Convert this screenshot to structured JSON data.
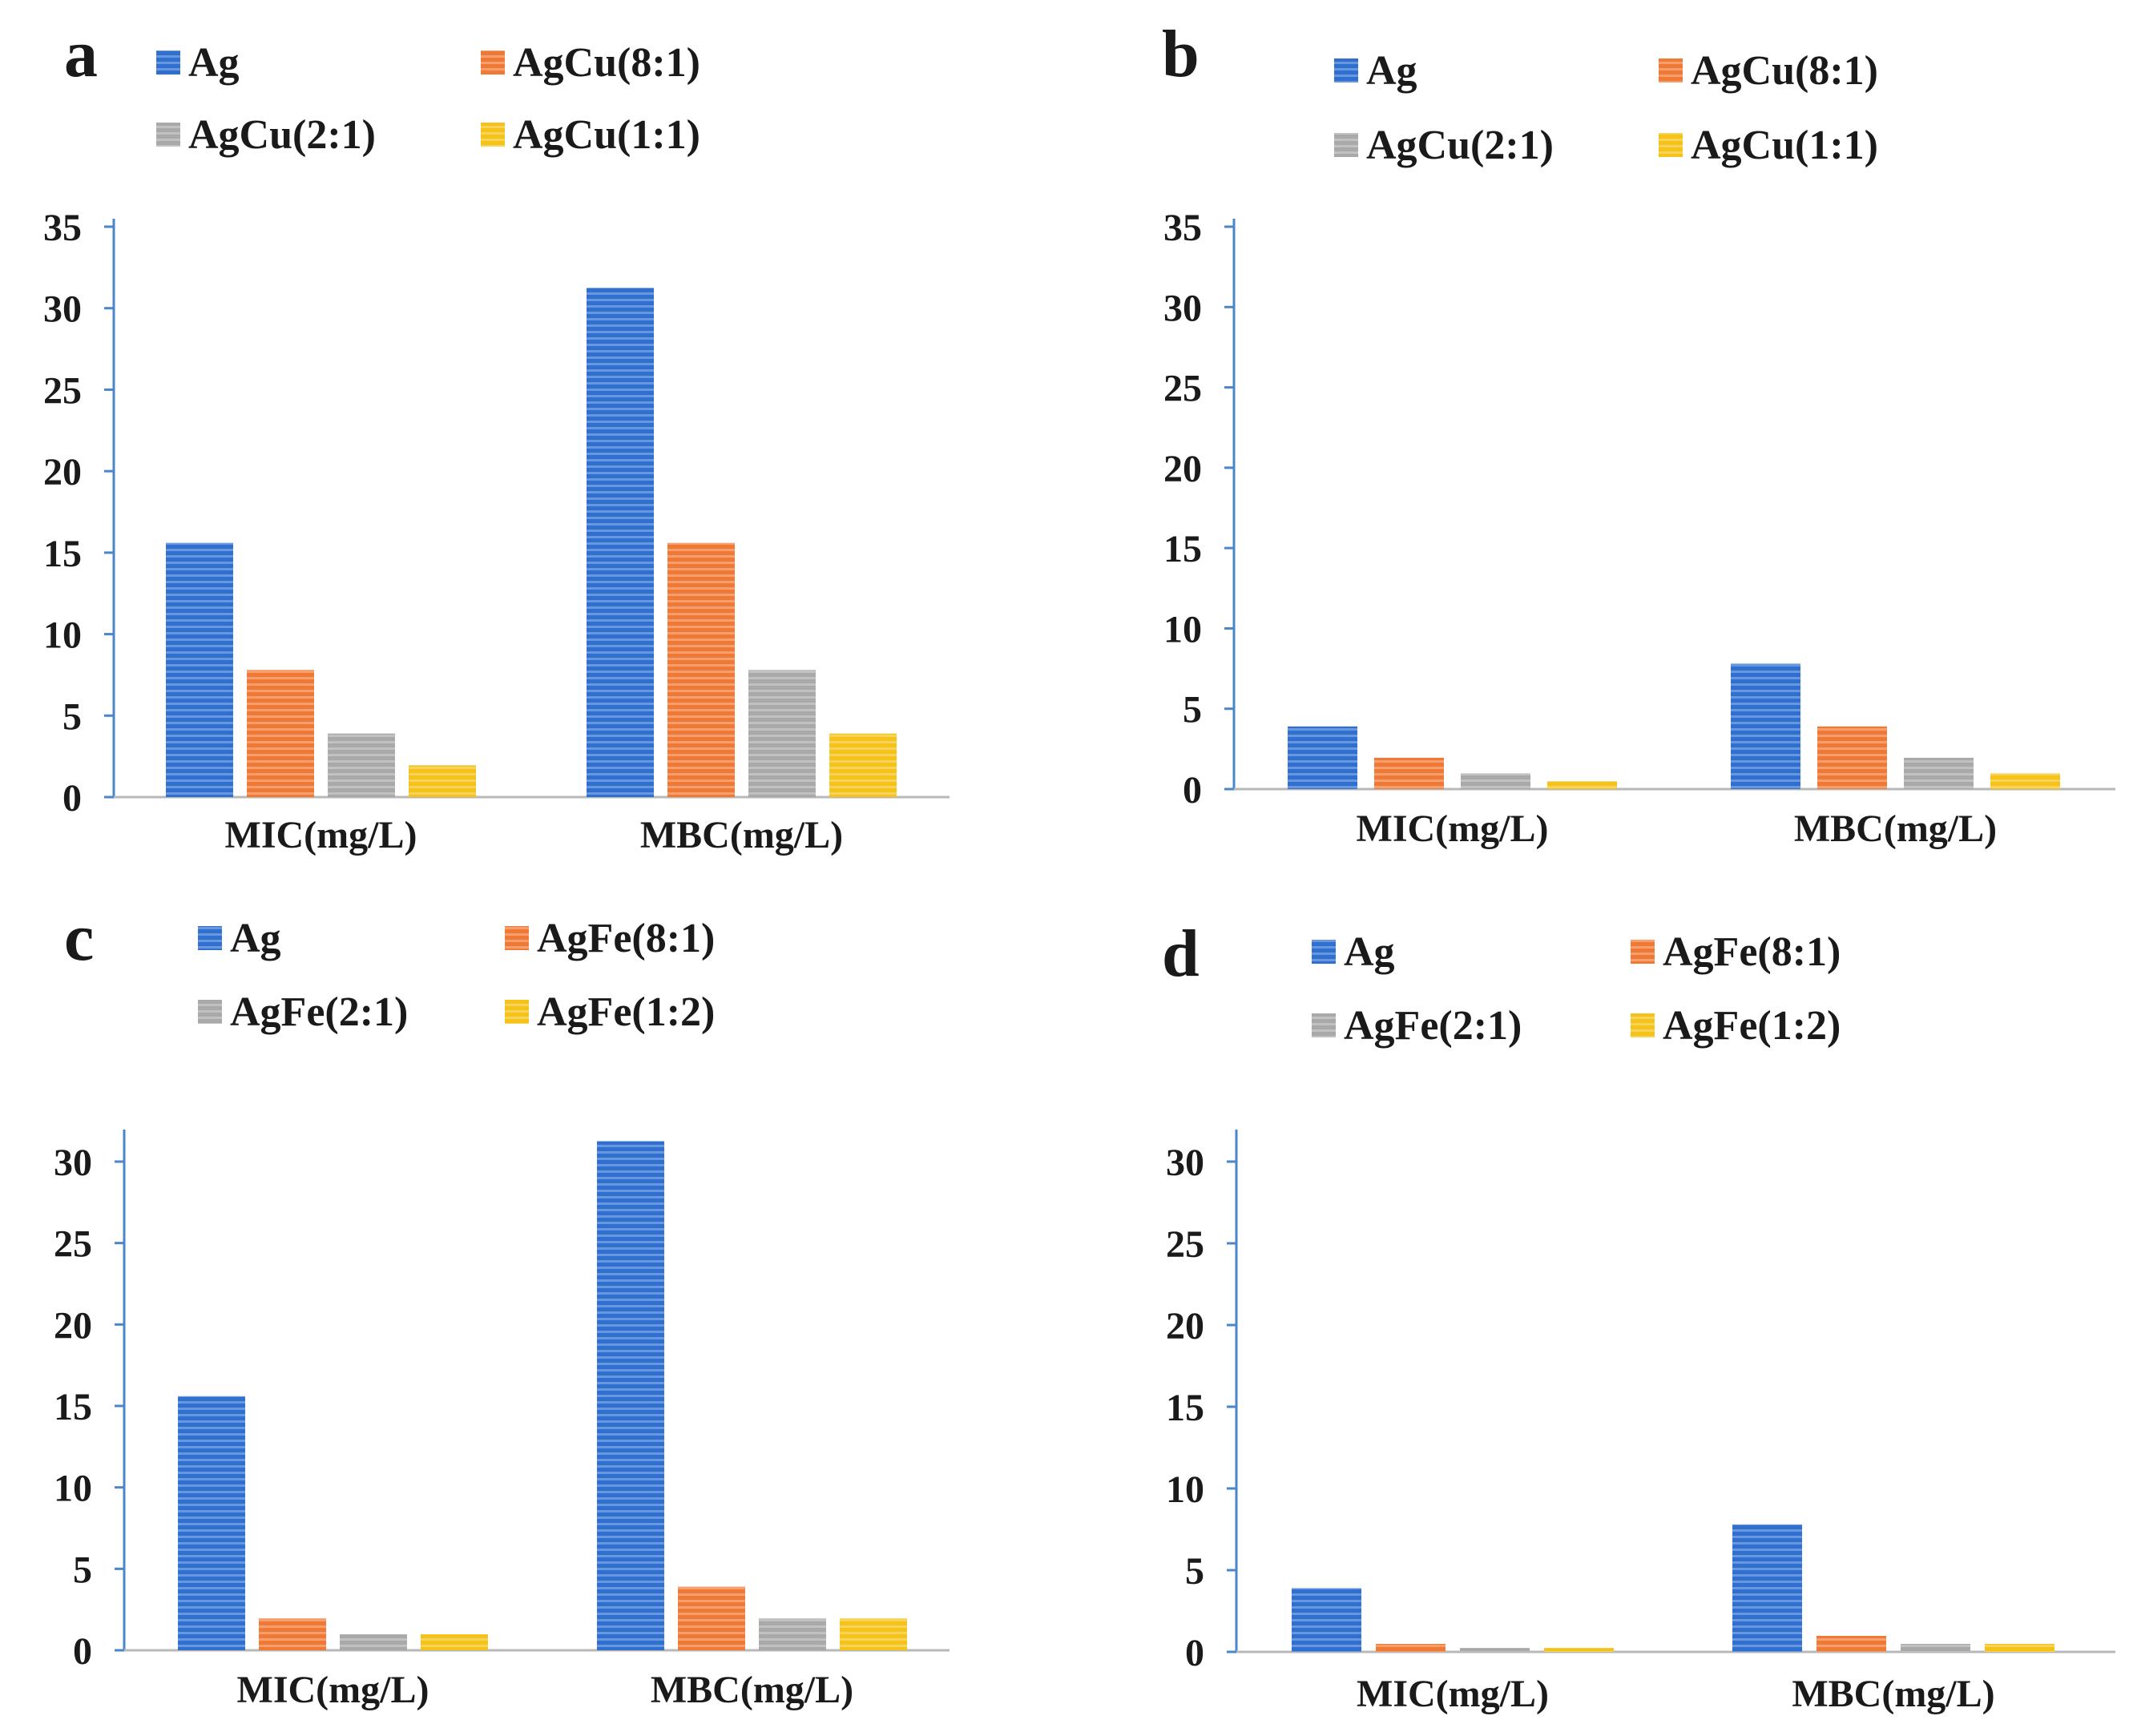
{
  "figure": {
    "colors": {
      "Ag": "#2e6fd0",
      "series2": "#f07a35",
      "series3": "#a9a9a9",
      "series4": "#f5c21a",
      "axis": "#4a86c8",
      "text": "#1a1a1a"
    }
  },
  "chart_data": [
    {
      "type": "bar",
      "panel_label": "a",
      "categories": [
        "MIC(mg/L)",
        "MBC(mg/L)"
      ],
      "series": [
        {
          "name": "Ag",
          "values": [
            15.6,
            31.25
          ]
        },
        {
          "name": "AgCu(8:1)",
          "values": [
            7.8,
            15.6
          ]
        },
        {
          "name": "AgCu(2:1)",
          "values": [
            3.9,
            7.8
          ]
        },
        {
          "name": "AgCu(1:1)",
          "values": [
            1.95,
            3.9
          ]
        }
      ],
      "yticks": [
        "0",
        "5",
        "10",
        "15",
        "20",
        "25",
        "30",
        "35"
      ],
      "ylim": [
        0,
        35
      ],
      "grid": false,
      "legend": "top"
    },
    {
      "type": "bar",
      "panel_label": "b",
      "categories": [
        "MIC(mg/L)",
        "MBC(mg/L)"
      ],
      "series": [
        {
          "name": "Ag",
          "values": [
            3.9,
            7.8
          ]
        },
        {
          "name": "AgCu(8:1)",
          "values": [
            1.95,
            3.9
          ]
        },
        {
          "name": "AgCu(2:1)",
          "values": [
            0.98,
            1.95
          ]
        },
        {
          "name": "AgCu(1:1)",
          "values": [
            0.49,
            0.98
          ]
        }
      ],
      "yticks": [
        "0",
        "5",
        "10",
        "15",
        "20",
        "25",
        "30",
        "35"
      ],
      "ylim": [
        0,
        35
      ],
      "grid": false,
      "legend": "top"
    },
    {
      "type": "bar",
      "panel_label": "c",
      "categories": [
        "MIC(mg/L)",
        "MBC(mg/L)"
      ],
      "series": [
        {
          "name": "Ag",
          "values": [
            15.6,
            31.25
          ]
        },
        {
          "name": "AgFe(8:1)",
          "values": [
            1.95,
            3.9
          ]
        },
        {
          "name": "AgFe(2:1)",
          "values": [
            0.98,
            1.95
          ]
        },
        {
          "name": "AgFe(1:2)",
          "values": [
            0.98,
            1.95
          ]
        }
      ],
      "yticks": [
        "0",
        "5",
        "10",
        "15",
        "20",
        "25",
        "30"
      ],
      "ylim": [
        0,
        32
      ],
      "grid": false,
      "legend": "top"
    },
    {
      "type": "bar",
      "panel_label": "d",
      "categories": [
        "MIC(mg/L)",
        "MBC(mg/L)"
      ],
      "series": [
        {
          "name": "Ag",
          "values": [
            3.9,
            7.8
          ]
        },
        {
          "name": "AgFe(8:1)",
          "values": [
            0.49,
            0.98
          ]
        },
        {
          "name": "AgFe(2:1)",
          "values": [
            0.24,
            0.49
          ]
        },
        {
          "name": "AgFe(1:2)",
          "values": [
            0.24,
            0.49
          ]
        }
      ],
      "yticks": [
        "0",
        "5",
        "10",
        "15",
        "20",
        "25",
        "30"
      ],
      "ylim": [
        0,
        32
      ],
      "grid": false,
      "legend": "top"
    }
  ]
}
